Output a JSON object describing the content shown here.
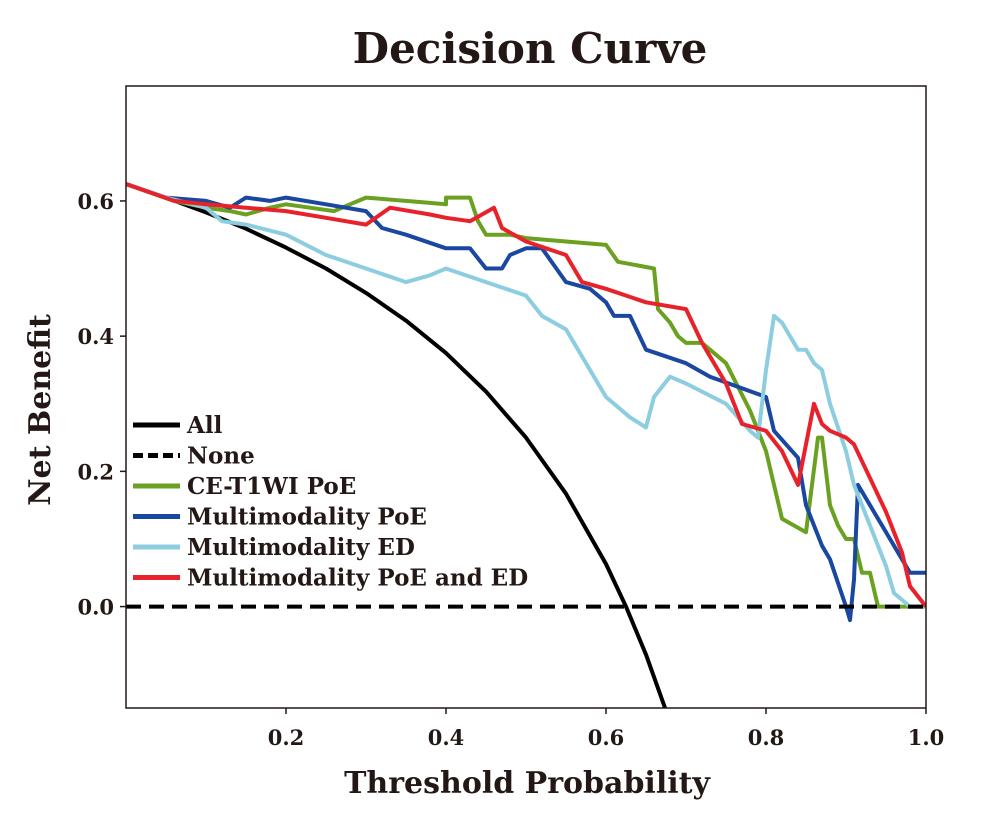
{
  "chart_data": {
    "type": "line",
    "title": "Decision Curve",
    "xlabel": "Threshold Probability",
    "ylabel": "Net Benefit",
    "xlim": [
      0.0,
      1.0
    ],
    "ylim": [
      -0.15,
      0.77
    ],
    "xticks": [
      0.2,
      0.4,
      0.6,
      0.8,
      1.0
    ],
    "xtick_labels": [
      "0.2",
      "0.4",
      "0.6",
      "0.8",
      "1.0"
    ],
    "yticks": [
      0.0,
      0.2,
      0.4,
      0.6
    ],
    "ytick_labels": [
      "0.0",
      "0.2",
      "0.4",
      "0.6"
    ],
    "grid": false,
    "legend_position": "lower-left",
    "series": [
      {
        "name": "All",
        "color": "#000000",
        "dash": "solid",
        "x": [
          0.0,
          0.05,
          0.1,
          0.15,
          0.2,
          0.25,
          0.3,
          0.35,
          0.4,
          0.45,
          0.5,
          0.55,
          0.6,
          0.625,
          0.65,
          0.675
        ],
        "y": [
          0.625,
          0.605,
          0.583,
          0.559,
          0.531,
          0.5,
          0.464,
          0.423,
          0.375,
          0.318,
          0.25,
          0.167,
          0.063,
          0.0,
          -0.071,
          -0.154
        ]
      },
      {
        "name": "None",
        "color": "#000000",
        "dash": "dashed",
        "x": [
          0.0,
          1.0
        ],
        "y": [
          0.0,
          0.0
        ]
      },
      {
        "name": "CE-T1WI PoE",
        "color": "#6aa121",
        "dash": "solid",
        "x": [
          0.0,
          0.06,
          0.1,
          0.13,
          0.15,
          0.18,
          0.2,
          0.23,
          0.26,
          0.28,
          0.3,
          0.35,
          0.4,
          0.4,
          0.43,
          0.44,
          0.45,
          0.48,
          0.5,
          0.55,
          0.6,
          0.615,
          0.66,
          0.665,
          0.68,
          0.69,
          0.7,
          0.72,
          0.75,
          0.78,
          0.8,
          0.82,
          0.85,
          0.865,
          0.87,
          0.88,
          0.89,
          0.9,
          0.91,
          0.92,
          0.93,
          0.94,
          0.95,
          1.0
        ],
        "y": [
          0.625,
          0.6,
          0.59,
          0.585,
          0.58,
          0.59,
          0.595,
          0.59,
          0.585,
          0.595,
          0.605,
          0.6,
          0.595,
          0.605,
          0.605,
          0.57,
          0.55,
          0.55,
          0.545,
          0.54,
          0.535,
          0.51,
          0.5,
          0.44,
          0.42,
          0.4,
          0.39,
          0.39,
          0.36,
          0.29,
          0.23,
          0.13,
          0.11,
          0.25,
          0.25,
          0.15,
          0.12,
          0.1,
          0.1,
          0.05,
          0.05,
          0.0,
          0.0,
          0.0
        ]
      },
      {
        "name": "Multimodality PoE",
        "color": "#1a47a0",
        "dash": "solid",
        "x": [
          0.0,
          0.05,
          0.1,
          0.13,
          0.15,
          0.18,
          0.2,
          0.25,
          0.3,
          0.32,
          0.35,
          0.4,
          0.43,
          0.45,
          0.47,
          0.48,
          0.5,
          0.52,
          0.55,
          0.58,
          0.6,
          0.61,
          0.63,
          0.65,
          0.7,
          0.73,
          0.8,
          0.81,
          0.84,
          0.85,
          0.87,
          0.88,
          0.9,
          0.905,
          0.91,
          0.915,
          0.93,
          0.96,
          0.98,
          1.0
        ],
        "y": [
          0.625,
          0.605,
          0.6,
          0.59,
          0.605,
          0.6,
          0.605,
          0.595,
          0.585,
          0.56,
          0.55,
          0.53,
          0.53,
          0.5,
          0.5,
          0.52,
          0.53,
          0.53,
          0.48,
          0.47,
          0.45,
          0.43,
          0.43,
          0.38,
          0.36,
          0.34,
          0.31,
          0.26,
          0.22,
          0.15,
          0.09,
          0.07,
          0.0,
          -0.02,
          0.04,
          0.18,
          0.15,
          0.09,
          0.05,
          0.05
        ]
      },
      {
        "name": "Multimodality ED",
        "color": "#8ccde0",
        "dash": "solid",
        "x": [
          0.0,
          0.05,
          0.1,
          0.12,
          0.15,
          0.2,
          0.25,
          0.3,
          0.35,
          0.38,
          0.4,
          0.45,
          0.5,
          0.52,
          0.55,
          0.6,
          0.63,
          0.65,
          0.66,
          0.68,
          0.7,
          0.75,
          0.78,
          0.79,
          0.8,
          0.81,
          0.82,
          0.83,
          0.84,
          0.85,
          0.86,
          0.87,
          0.88,
          0.9,
          0.91,
          0.93,
          0.95,
          0.96,
          0.98,
          1.0
        ],
        "y": [
          0.625,
          0.605,
          0.59,
          0.57,
          0.565,
          0.55,
          0.52,
          0.5,
          0.48,
          0.49,
          0.5,
          0.48,
          0.46,
          0.43,
          0.41,
          0.31,
          0.28,
          0.265,
          0.31,
          0.34,
          0.33,
          0.3,
          0.26,
          0.25,
          0.35,
          0.43,
          0.42,
          0.4,
          0.38,
          0.38,
          0.36,
          0.35,
          0.3,
          0.23,
          0.18,
          0.12,
          0.06,
          0.02,
          0.0,
          0.0
        ]
      },
      {
        "name": "Multimodality PoE and ED",
        "color": "#e8222a",
        "dash": "solid",
        "x": [
          0.0,
          0.06,
          0.1,
          0.15,
          0.2,
          0.25,
          0.3,
          0.33,
          0.38,
          0.4,
          0.43,
          0.46,
          0.47,
          0.5,
          0.55,
          0.57,
          0.6,
          0.65,
          0.7,
          0.72,
          0.75,
          0.77,
          0.8,
          0.82,
          0.84,
          0.86,
          0.87,
          0.88,
          0.9,
          0.91,
          0.95,
          0.97,
          0.98,
          1.0
        ],
        "y": [
          0.625,
          0.6,
          0.595,
          0.59,
          0.585,
          0.575,
          0.565,
          0.59,
          0.58,
          0.575,
          0.57,
          0.59,
          0.56,
          0.54,
          0.52,
          0.48,
          0.47,
          0.45,
          0.44,
          0.39,
          0.33,
          0.27,
          0.26,
          0.23,
          0.18,
          0.3,
          0.27,
          0.26,
          0.25,
          0.24,
          0.14,
          0.08,
          0.03,
          0.0
        ]
      }
    ]
  }
}
